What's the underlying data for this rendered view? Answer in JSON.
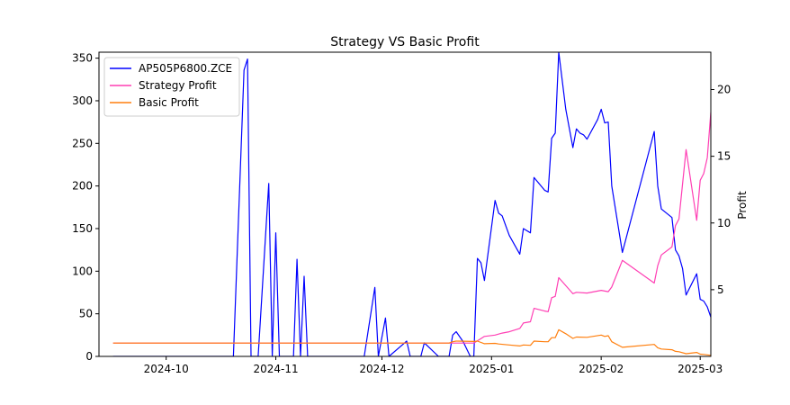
{
  "chart_data": {
    "type": "line",
    "title": "Strategy VS Basic Profit",
    "xlabel": "",
    "ylabel_left": "",
    "ylabel_right": "Profit",
    "x_ticks": [
      "2024-10",
      "2024-11",
      "2024-12",
      "2025-01",
      "2025-02",
      "2025-03"
    ],
    "x_tick_dates": [
      "2024-10-01",
      "2024-11-01",
      "2024-12-01",
      "2025-01-01",
      "2025-02-01",
      "2025-03-01"
    ],
    "xlim": [
      "2024-09-12",
      "2025-03-04"
    ],
    "y_left_ticks": [
      0,
      50,
      100,
      150,
      200,
      250,
      300,
      350
    ],
    "y_left_lim": [
      0,
      357
    ],
    "y_right_ticks": [
      5,
      10,
      15,
      20
    ],
    "y_right_lim": [
      0.0,
      22.8
    ],
    "grid": false,
    "legend_position": "top-left",
    "series": [
      {
        "name": "AP505P6800.ZCE",
        "axis": "left",
        "color": "#0000ff",
        "points": [
          [
            "2024-09-16",
            0
          ],
          [
            "2024-10-20",
            0
          ],
          [
            "2024-10-23",
            336
          ],
          [
            "2024-10-24",
            349
          ],
          [
            "2024-10-25",
            0
          ],
          [
            "2024-10-27",
            0
          ],
          [
            "2024-10-30",
            203
          ],
          [
            "2024-10-31",
            0
          ],
          [
            "2024-11-01",
            145
          ],
          [
            "2024-11-02",
            0
          ],
          [
            "2024-11-06",
            0
          ],
          [
            "2024-11-07",
            114
          ],
          [
            "2024-11-08",
            0
          ],
          [
            "2024-11-09",
            94
          ],
          [
            "2024-11-10",
            0
          ],
          [
            "2024-11-26",
            0
          ],
          [
            "2024-11-29",
            81
          ],
          [
            "2024-11-30",
            0
          ],
          [
            "2024-12-02",
            45
          ],
          [
            "2024-12-03",
            0
          ],
          [
            "2024-12-08",
            18
          ],
          [
            "2024-12-09",
            0
          ],
          [
            "2024-12-12",
            0
          ],
          [
            "2024-12-13",
            16
          ],
          [
            "2024-12-17",
            0
          ],
          [
            "2024-12-20",
            0
          ],
          [
            "2024-12-21",
            25
          ],
          [
            "2024-12-22",
            29
          ],
          [
            "2024-12-24",
            17
          ],
          [
            "2024-12-26",
            0
          ],
          [
            "2024-12-27",
            0
          ],
          [
            "2024-12-28",
            115
          ],
          [
            "2024-12-29",
            110
          ],
          [
            "2024-12-30",
            89
          ],
          [
            "2025-01-02",
            183
          ],
          [
            "2025-01-03",
            168
          ],
          [
            "2025-01-04",
            165
          ],
          [
            "2025-01-06",
            142
          ],
          [
            "2025-01-09",
            120
          ],
          [
            "2025-01-10",
            150
          ],
          [
            "2025-01-12",
            145
          ],
          [
            "2025-01-13",
            210
          ],
          [
            "2025-01-16",
            195
          ],
          [
            "2025-01-17",
            193
          ],
          [
            "2025-01-18",
            256
          ],
          [
            "2025-01-19",
            262
          ],
          [
            "2025-01-20",
            357
          ],
          [
            "2025-01-22",
            290
          ],
          [
            "2025-01-24",
            245
          ],
          [
            "2025-01-25",
            267
          ],
          [
            "2025-01-26",
            262
          ],
          [
            "2025-01-27",
            260
          ],
          [
            "2025-01-28",
            255
          ],
          [
            "2025-01-31",
            278
          ],
          [
            "2025-02-01",
            290
          ],
          [
            "2025-02-02",
            274
          ],
          [
            "2025-02-03",
            275
          ],
          [
            "2025-02-04",
            200
          ],
          [
            "2025-02-07",
            122
          ],
          [
            "2025-02-16",
            264
          ],
          [
            "2025-02-17",
            200
          ],
          [
            "2025-02-18",
            173
          ],
          [
            "2025-02-21",
            163
          ],
          [
            "2025-02-22",
            125
          ],
          [
            "2025-02-23",
            118
          ],
          [
            "2025-02-24",
            103
          ],
          [
            "2025-02-25",
            72
          ],
          [
            "2025-02-28",
            97
          ],
          [
            "2025-03-01",
            67
          ],
          [
            "2025-03-02",
            65
          ],
          [
            "2025-03-03",
            58
          ],
          [
            "2025-03-04",
            46
          ],
          [
            "2025-03-07",
            49
          ],
          [
            "2025-03-08",
            77
          ],
          [
            "2025-03-09",
            46
          ]
        ]
      },
      {
        "name": "Strategy Profit",
        "axis": "right",
        "color": "#ff3fb4",
        "points": [
          [
            "2024-09-16",
            1.0
          ],
          [
            "2024-12-20",
            1.0
          ],
          [
            "2024-12-27",
            1.0
          ],
          [
            "2024-12-30",
            1.5
          ],
          [
            "2025-01-02",
            1.6
          ],
          [
            "2025-01-04",
            1.75
          ],
          [
            "2025-01-06",
            1.85
          ],
          [
            "2025-01-09",
            2.1
          ],
          [
            "2025-01-10",
            2.5
          ],
          [
            "2025-01-12",
            2.6
          ],
          [
            "2025-01-13",
            3.6
          ],
          [
            "2025-01-16",
            3.4
          ],
          [
            "2025-01-17",
            3.35
          ],
          [
            "2025-01-18",
            4.4
          ],
          [
            "2025-01-19",
            4.5
          ],
          [
            "2025-01-20",
            5.9
          ],
          [
            "2025-01-24",
            4.7
          ],
          [
            "2025-01-25",
            4.8
          ],
          [
            "2025-01-28",
            4.75
          ],
          [
            "2025-02-01",
            4.95
          ],
          [
            "2025-02-03",
            4.85
          ],
          [
            "2025-02-04",
            5.2
          ],
          [
            "2025-02-07",
            7.2
          ],
          [
            "2025-02-16",
            5.5
          ],
          [
            "2025-02-17",
            6.8
          ],
          [
            "2025-02-18",
            7.6
          ],
          [
            "2025-02-21",
            8.2
          ],
          [
            "2025-02-22",
            9.8
          ],
          [
            "2025-02-23",
            10.3
          ],
          [
            "2025-02-25",
            15.5
          ],
          [
            "2025-02-28",
            10.2
          ],
          [
            "2025-03-01",
            13.2
          ],
          [
            "2025-03-02",
            13.7
          ],
          [
            "2025-03-03",
            14.9
          ],
          [
            "2025-03-04",
            18.3
          ],
          [
            "2025-03-07",
            17.0
          ],
          [
            "2025-03-08",
            17.0
          ],
          [
            "2025-03-09",
            22.8
          ]
        ]
      },
      {
        "name": "Basic Profit",
        "axis": "right",
        "color": "#ff7f0e",
        "points": [
          [
            "2024-09-16",
            1.0
          ],
          [
            "2024-12-20",
            1.0
          ],
          [
            "2024-12-21",
            1.1
          ],
          [
            "2024-12-22",
            1.15
          ],
          [
            "2024-12-27",
            1.12
          ],
          [
            "2024-12-28",
            1.15
          ],
          [
            "2024-12-30",
            0.95
          ],
          [
            "2025-01-02",
            0.98
          ],
          [
            "2025-01-03",
            0.93
          ],
          [
            "2025-01-06",
            0.86
          ],
          [
            "2025-01-09",
            0.78
          ],
          [
            "2025-01-10",
            0.86
          ],
          [
            "2025-01-12",
            0.83
          ],
          [
            "2025-01-13",
            1.15
          ],
          [
            "2025-01-16",
            1.1
          ],
          [
            "2025-01-17",
            1.1
          ],
          [
            "2025-01-18",
            1.4
          ],
          [
            "2025-01-19",
            1.4
          ],
          [
            "2025-01-20",
            2.0
          ],
          [
            "2025-01-22",
            1.7
          ],
          [
            "2025-01-24",
            1.35
          ],
          [
            "2025-01-25",
            1.45
          ],
          [
            "2025-01-28",
            1.43
          ],
          [
            "2025-02-01",
            1.6
          ],
          [
            "2025-02-02",
            1.5
          ],
          [
            "2025-02-03",
            1.55
          ],
          [
            "2025-02-04",
            1.1
          ],
          [
            "2025-02-07",
            0.68
          ],
          [
            "2025-02-16",
            0.9
          ],
          [
            "2025-02-17",
            0.65
          ],
          [
            "2025-02-18",
            0.55
          ],
          [
            "2025-02-21",
            0.5
          ],
          [
            "2025-02-22",
            0.38
          ],
          [
            "2025-02-23",
            0.35
          ],
          [
            "2025-02-25",
            0.2
          ],
          [
            "2025-02-28",
            0.3
          ],
          [
            "2025-03-01",
            0.17
          ],
          [
            "2025-03-02",
            0.15
          ],
          [
            "2025-03-04",
            0.08
          ],
          [
            "2025-03-07",
            0.1
          ],
          [
            "2025-03-08",
            0.05
          ],
          [
            "2025-03-09",
            0.05
          ]
        ]
      }
    ]
  }
}
